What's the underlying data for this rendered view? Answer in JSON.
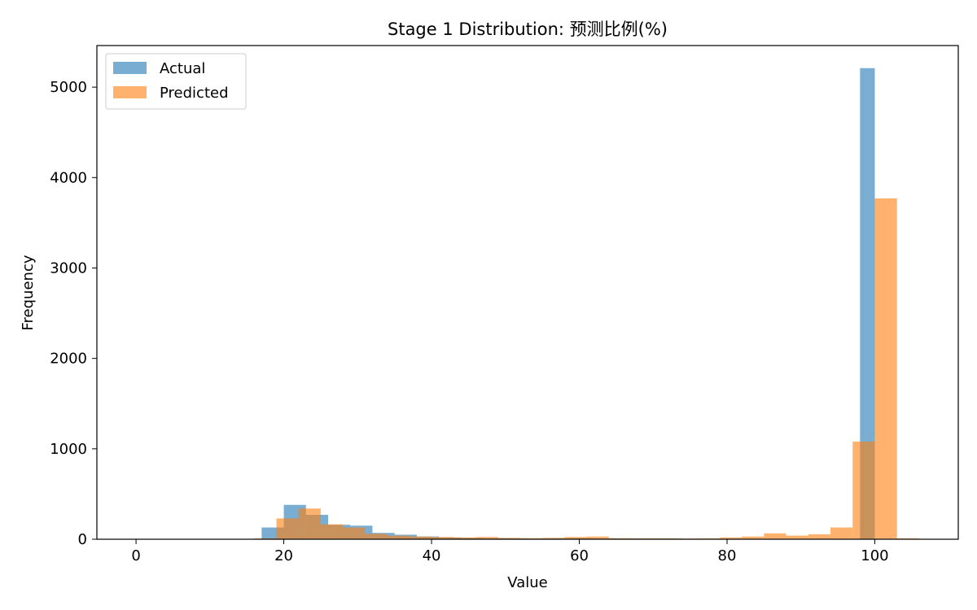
{
  "chart_data": {
    "type": "bar",
    "title": "Stage 1 Distribution: 预测比例(%)",
    "xlabel": "Value",
    "ylabel": "Frequency",
    "xlim": [
      -5.3,
      111.3
    ],
    "ylim": [
      0,
      5460
    ],
    "xticks": [
      0,
      20,
      40,
      60,
      80,
      100
    ],
    "yticks": [
      0,
      1000,
      2000,
      3000,
      4000,
      5000
    ],
    "legend": {
      "position": "top-left"
    },
    "grid": false,
    "series": [
      {
        "name": "Actual",
        "color": "#1f77b4",
        "opacity": 0.6,
        "bins": [
          [
            17,
            20,
            130
          ],
          [
            20,
            23,
            380
          ],
          [
            23,
            26,
            270
          ],
          [
            26,
            29,
            160
          ],
          [
            29,
            32,
            150
          ],
          [
            32,
            35,
            70
          ],
          [
            35,
            38,
            50
          ],
          [
            38,
            41,
            30
          ],
          [
            41,
            44,
            20
          ],
          [
            44,
            47,
            15
          ],
          [
            47,
            50,
            12
          ],
          [
            50,
            53,
            10
          ],
          [
            53,
            56,
            8
          ],
          [
            56,
            59,
            10
          ],
          [
            59,
            62,
            12
          ],
          [
            62,
            65,
            10
          ],
          [
            65,
            68,
            8
          ],
          [
            68,
            71,
            8
          ],
          [
            71,
            74,
            8
          ],
          [
            74,
            77,
            5
          ],
          [
            77,
            80,
            5
          ],
          [
            80,
            83,
            5
          ],
          [
            83,
            86,
            5
          ],
          [
            86,
            89,
            5
          ],
          [
            89,
            92,
            5
          ],
          [
            92,
            95,
            5
          ],
          [
            95,
            98,
            5
          ],
          [
            98,
            100,
            5210
          ]
        ]
      },
      {
        "name": "Predicted",
        "color": "#ff7f0e",
        "opacity": 0.6,
        "bins": [
          [
            16,
            19,
            10
          ],
          [
            19,
            22,
            230
          ],
          [
            22,
            25,
            340
          ],
          [
            25,
            28,
            165
          ],
          [
            28,
            31,
            130
          ],
          [
            31,
            34,
            60
          ],
          [
            34,
            37,
            40
          ],
          [
            37,
            40,
            30
          ],
          [
            40,
            43,
            25
          ],
          [
            43,
            46,
            20
          ],
          [
            46,
            49,
            25
          ],
          [
            49,
            52,
            15
          ],
          [
            52,
            55,
            12
          ],
          [
            55,
            58,
            15
          ],
          [
            58,
            61,
            25
          ],
          [
            61,
            64,
            30
          ],
          [
            64,
            67,
            12
          ],
          [
            67,
            70,
            10
          ],
          [
            70,
            73,
            10
          ],
          [
            73,
            76,
            8
          ],
          [
            76,
            79,
            10
          ],
          [
            79,
            82,
            20
          ],
          [
            82,
            85,
            30
          ],
          [
            85,
            88,
            65
          ],
          [
            88,
            91,
            40
          ],
          [
            91,
            94,
            55
          ],
          [
            94,
            97,
            130
          ],
          [
            97,
            100,
            1080
          ],
          [
            100,
            103,
            3770
          ],
          [
            103,
            106,
            10
          ]
        ]
      }
    ]
  }
}
